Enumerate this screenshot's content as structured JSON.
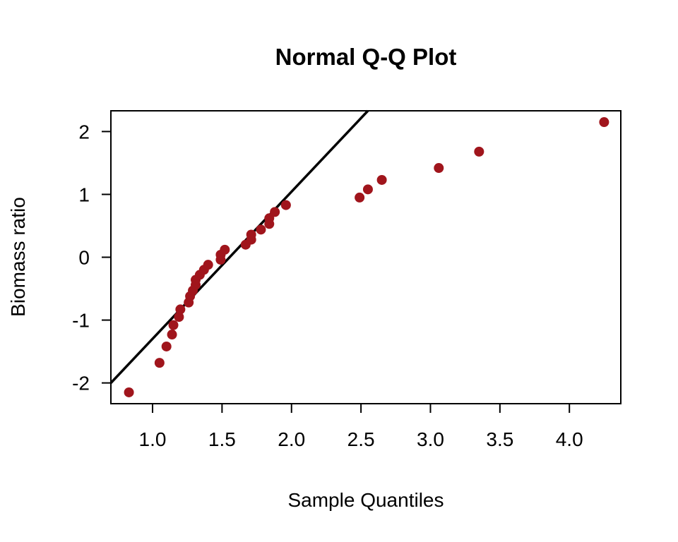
{
  "chart_data": {
    "type": "scatter",
    "title": "Normal Q-Q Plot",
    "xlabel": "Sample Quantiles",
    "ylabel": "Biomass ratio",
    "xlim": [
      0.7,
      4.37
    ],
    "ylim": [
      -2.33,
      2.33
    ],
    "x_ticks": [
      1.0,
      1.5,
      2.0,
      2.5,
      3.0,
      3.5,
      4.0
    ],
    "x_tick_labels": [
      "1.0",
      "1.5",
      "2.0",
      "2.5",
      "3.0",
      "3.5",
      "4.0"
    ],
    "y_ticks": [
      -2,
      -1,
      0,
      1,
      2
    ],
    "y_tick_labels": [
      "-2",
      "-1",
      "0",
      "1",
      "2"
    ],
    "point_color": "#a0151c",
    "grid": false,
    "legend": "none",
    "points": [
      {
        "x": 0.83,
        "y": -2.15
      },
      {
        "x": 1.05,
        "y": -1.68
      },
      {
        "x": 1.1,
        "y": -1.42
      },
      {
        "x": 1.14,
        "y": -1.23
      },
      {
        "x": 1.15,
        "y": -1.08
      },
      {
        "x": 1.19,
        "y": -0.95
      },
      {
        "x": 1.2,
        "y": -0.83
      },
      {
        "x": 1.26,
        "y": -0.72
      },
      {
        "x": 1.27,
        "y": -0.62
      },
      {
        "x": 1.29,
        "y": -0.53
      },
      {
        "x": 1.31,
        "y": -0.44
      },
      {
        "x": 1.31,
        "y": -0.36
      },
      {
        "x": 1.34,
        "y": -0.28
      },
      {
        "x": 1.37,
        "y": -0.2
      },
      {
        "x": 1.4,
        "y": -0.12
      },
      {
        "x": 1.49,
        "y": -0.04
      },
      {
        "x": 1.49,
        "y": 0.04
      },
      {
        "x": 1.52,
        "y": 0.12
      },
      {
        "x": 1.67,
        "y": 0.2
      },
      {
        "x": 1.71,
        "y": 0.28
      },
      {
        "x": 1.71,
        "y": 0.36
      },
      {
        "x": 1.78,
        "y": 0.44
      },
      {
        "x": 1.84,
        "y": 0.53
      },
      {
        "x": 1.84,
        "y": 0.62
      },
      {
        "x": 1.88,
        "y": 0.72
      },
      {
        "x": 1.96,
        "y": 0.83
      },
      {
        "x": 2.49,
        "y": 0.95
      },
      {
        "x": 2.55,
        "y": 1.08
      },
      {
        "x": 2.65,
        "y": 1.23
      },
      {
        "x": 3.06,
        "y": 1.42
      },
      {
        "x": 3.35,
        "y": 1.68
      },
      {
        "x": 4.25,
        "y": 2.15
      }
    ],
    "reference_line": {
      "x1": 0.7,
      "y1": -2.0,
      "x2": 2.55,
      "y2": 2.33
    }
  }
}
